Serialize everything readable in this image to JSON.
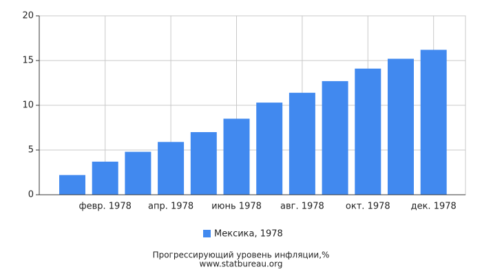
{
  "chart_data": {
    "type": "bar",
    "title": "Прогрессирующий уровень инфляции,%",
    "subtitle": "www.statbureau.org",
    "categories": [
      null,
      "февр. 1978",
      null,
      "апр. 1978",
      null,
      "июнь 1978",
      null,
      "авг. 1978",
      null,
      "окт. 1978",
      null,
      "дек. 1978"
    ],
    "series": [
      {
        "name": "Мексика, 1978",
        "color": "#4189ef",
        "values": [
          2.2,
          3.7,
          4.8,
          5.9,
          7.0,
          8.5,
          10.3,
          11.4,
          12.7,
          14.1,
          15.2,
          16.2
        ]
      }
    ],
    "ylim": [
      0,
      20
    ],
    "yticks": [
      0,
      5,
      10,
      15,
      20
    ],
    "grid": true
  }
}
